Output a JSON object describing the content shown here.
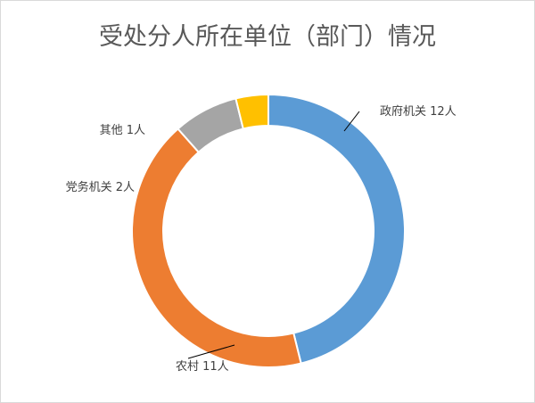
{
  "chart_data": {
    "type": "doughnut",
    "title": "受处分人所在单位（部门）情况",
    "categories": [
      "政府机关",
      "农村",
      "党务机关",
      "其他"
    ],
    "values": [
      12,
      11,
      2,
      1
    ],
    "unit": "人",
    "colors": [
      "#5b9bd5",
      "#ed7d31",
      "#a5a5a5",
      "#ffc000"
    ],
    "data_labels": [
      "政府机关 12人",
      "农村 11人",
      "党务机关 2人",
      "其他 1人"
    ],
    "legend": "none"
  }
}
